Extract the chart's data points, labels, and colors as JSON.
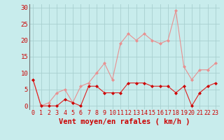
{
  "x": [
    0,
    1,
    2,
    3,
    4,
    5,
    6,
    7,
    8,
    9,
    10,
    11,
    12,
    13,
    14,
    15,
    16,
    17,
    18,
    19,
    20,
    21,
    22,
    23
  ],
  "y_mean": [
    8,
    0,
    0,
    0,
    2,
    1,
    0,
    6,
    6,
    4,
    4,
    4,
    7,
    7,
    7,
    6,
    6,
    6,
    4,
    6,
    0,
    4,
    6,
    7
  ],
  "y_gusts": [
    8,
    0,
    1,
    4,
    5,
    1,
    6,
    7,
    10,
    13,
    8,
    19,
    22,
    20,
    22,
    20,
    19,
    20,
    29,
    12,
    8,
    11,
    11,
    13
  ],
  "line_color_mean": "#dd2020",
  "line_color_gusts": "#e89090",
  "marker_color_mean": "#cc0000",
  "marker_color_gusts": "#e89090",
  "bg_color": "#c8ecec",
  "grid_color": "#a8d0d0",
  "xlabel": "Vent moyen/en rafales ( km/h )",
  "ylabel_ticks": [
    0,
    5,
    10,
    15,
    20,
    25,
    30
  ],
  "xlim": [
    -0.5,
    23.5
  ],
  "ylim": [
    -1,
    31
  ],
  "xlabel_fontsize": 7.5,
  "tick_fontsize": 6.5,
  "xlabel_color": "#cc0000",
  "tick_color": "#cc0000"
}
